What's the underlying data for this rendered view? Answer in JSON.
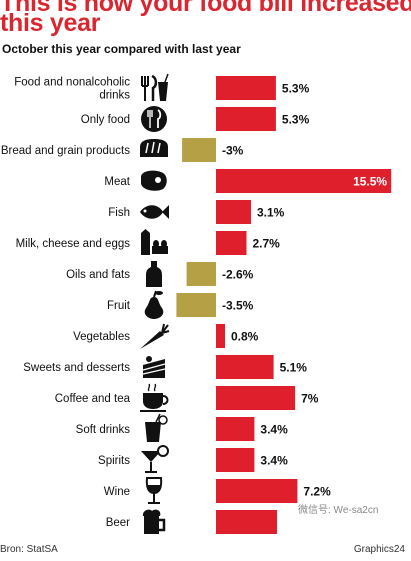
{
  "title_lines": [
    "This is how your food bill increased",
    "this year"
  ],
  "subtitle": "October this year compared with last year",
  "source": "Bron: StatSA",
  "credit": "Graphics24",
  "watermark": "微信号: We-sa2cn",
  "colors": {
    "positive": "#e01f2d",
    "negative": "#b6a046",
    "title": "#d9262f",
    "icon": "#111111"
  },
  "chart_data": {
    "type": "bar",
    "orientation": "horizontal",
    "categories": [
      "Food and nonalcoholic drinks",
      "Only food",
      "Bread and grain products",
      "Meat",
      "Fish",
      "Milk, cheese and eggs",
      "Oils and fats",
      "Fruit",
      "Vegetables",
      "Sweets and desserts",
      "Coffee and tea",
      "Soft drinks",
      "Spirits",
      "Wine",
      "Beer"
    ],
    "category_lines": [
      [
        "Food and nonalcoholic",
        "drinks"
      ],
      [
        "Only food"
      ],
      [
        "Bread and grain products"
      ],
      [
        "Meat"
      ],
      [
        "Fish"
      ],
      [
        "Milk, cheese and eggs"
      ],
      [
        "Oils and fats"
      ],
      [
        "Fruit"
      ],
      [
        "Vegetables"
      ],
      [
        "Sweets and desserts"
      ],
      [
        "Coffee and tea"
      ],
      [
        "Soft drinks"
      ],
      [
        "Spirits"
      ],
      [
        "Wine"
      ],
      [
        "Beer"
      ]
    ],
    "values": [
      5.3,
      5.3,
      -3,
      15.5,
      3.1,
      2.7,
      -2.6,
      -3.5,
      0.8,
      5.1,
      7,
      3.4,
      3.4,
      7.2,
      5.4
    ],
    "value_labels": [
      "5.3%",
      "5.3%",
      "-3%",
      "15.5%",
      "3.1%",
      "2.7%",
      "-2.6%",
      "-3.5%",
      "0.8%",
      "5.1%",
      "7%",
      "3.4%",
      "3.4%",
      "7.2%",
      ""
    ],
    "icons": [
      "cutlery-drink-icon",
      "cutlery-icon",
      "bread-icon",
      "steak-icon",
      "fish-icon",
      "milk-eggs-icon",
      "oil-bottle-icon",
      "pear-icon",
      "carrot-icon",
      "cake-icon",
      "coffee-cup-icon",
      "soft-drink-icon",
      "cocktail-icon",
      "wine-glass-icon",
      "beer-mug-icon"
    ],
    "unit": "%",
    "grid": false
  }
}
